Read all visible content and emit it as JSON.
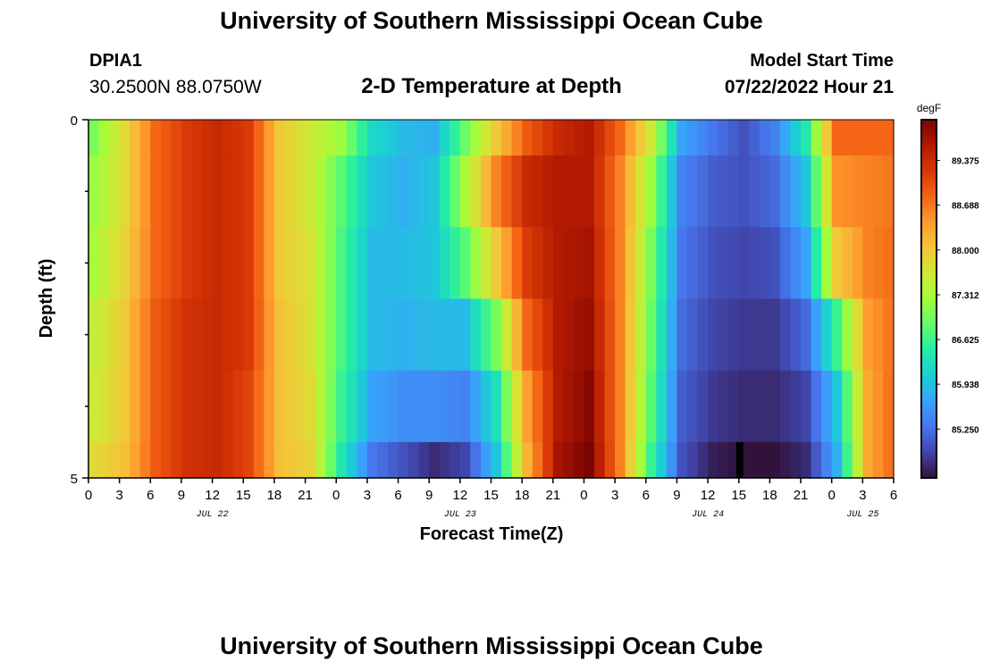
{
  "header": {
    "title": "University of Southern Mississippi Ocean Cube",
    "station_id": "DPIA1",
    "coords": "30.2500N  88.0750W",
    "subtitle": "2-D Temperature at Depth",
    "model_label": "Model Start Time",
    "model_time": "07/22/2022 Hour 21"
  },
  "footer": {
    "title": "University of Southern Mississippi Ocean Cube"
  },
  "chart_data": {
    "type": "heatmap",
    "title": "2-D Temperature at Depth",
    "xlabel": "Forecast Time(Z)",
    "ylabel": "Depth (ft)",
    "ylim": [
      0,
      5
    ],
    "y_tick_labels": [
      "0",
      "5"
    ],
    "x_tick_labels": [
      "0",
      "3",
      "6",
      "9",
      "12",
      "15",
      "18",
      "21",
      "0",
      "3",
      "6",
      "9",
      "12",
      "15",
      "18",
      "21",
      "0",
      "3",
      "6",
      "9",
      "12",
      "15",
      "18",
      "21",
      "0",
      "3",
      "6"
    ],
    "date_labels": [
      {
        "text": "JUL 22",
        "hour": 12
      },
      {
        "text": "JUL 23",
        "hour": 36
      },
      {
        "text": "JUL 24",
        "hour": 60
      },
      {
        "text": "JUL 25",
        "hour": 75
      }
    ],
    "x_range_hours": [
      0,
      78
    ],
    "depth_bins": [
      0,
      0.5,
      1.5,
      2.5,
      3.5,
      4.5
    ],
    "hours": [
      0,
      3,
      6,
      9,
      12,
      15,
      18,
      21,
      24,
      27,
      30,
      33,
      36,
      39,
      42,
      45,
      48,
      51,
      54,
      57,
      60,
      63,
      66,
      69,
      72,
      75,
      78
    ],
    "temperature_by_depth": [
      [
        87.0,
        87.8,
        88.8,
        89.2,
        89.4,
        89.2,
        88.0,
        87.6,
        87.2,
        86.2,
        85.9,
        85.8,
        86.9,
        88.0,
        88.9,
        89.4,
        89.6,
        88.8,
        87.6,
        85.7,
        85.3,
        85.0,
        85.4,
        86.4,
        88.8,
        88.8,
        88.8
      ],
      [
        87.2,
        87.8,
        88.8,
        89.2,
        89.4,
        89.2,
        88.0,
        87.6,
        86.8,
        86.0,
        85.8,
        86.0,
        87.3,
        88.6,
        89.4,
        89.6,
        89.6,
        88.6,
        87.2,
        85.4,
        85.1,
        85.0,
        85.2,
        86.0,
        88.5,
        88.6,
        88.7
      ],
      [
        87.3,
        87.9,
        88.8,
        89.2,
        89.4,
        89.2,
        88.0,
        87.7,
        86.7,
        85.9,
        85.9,
        86.0,
        86.8,
        88.0,
        89.2,
        89.6,
        89.7,
        88.6,
        87.0,
        85.3,
        85.0,
        84.9,
        85.0,
        85.7,
        88.0,
        88.6,
        88.8
      ],
      [
        87.5,
        88.0,
        88.9,
        89.3,
        89.4,
        89.2,
        88.1,
        87.7,
        86.7,
        85.9,
        85.8,
        85.9,
        85.9,
        87.0,
        88.8,
        89.6,
        89.8,
        88.6,
        86.9,
        85.2,
        84.9,
        84.8,
        84.8,
        85.2,
        86.6,
        88.4,
        88.8
      ],
      [
        87.6,
        88.0,
        88.9,
        89.3,
        89.4,
        89.1,
        88.1,
        87.8,
        86.6,
        85.7,
        85.5,
        85.5,
        85.4,
        86.3,
        88.4,
        89.6,
        89.9,
        88.6,
        86.8,
        85.1,
        84.8,
        84.7,
        84.7,
        84.9,
        86.0,
        88.3,
        88.9
      ],
      [
        87.8,
        88.1,
        88.9,
        89.3,
        89.4,
        89.1,
        88.1,
        87.9,
        86.4,
        85.3,
        85.0,
        84.7,
        84.9,
        86.0,
        88.2,
        89.7,
        90.0,
        88.6,
        86.6,
        85.0,
        84.6,
        84.5,
        84.5,
        84.7,
        85.8,
        88.3,
        88.9
      ]
    ],
    "colorbar": {
      "unit": "degF",
      "min": 84.5,
      "max": 90.0,
      "tick_values": [
        85.25,
        85.938,
        86.625,
        87.312,
        88.0,
        88.688,
        89.375
      ],
      "tick_labels": [
        "85.250",
        "85.938",
        "86.625",
        "87.312",
        "88.000",
        "88.688",
        "89.375"
      ],
      "colormap": [
        "#30123b",
        "#4145ab",
        "#4675ed",
        "#39a2fc",
        "#1bcfd4",
        "#24eca6",
        "#61fc6c",
        "#a4fc3b",
        "#d1e834",
        "#f3c63a",
        "#fe9b2d",
        "#f36315",
        "#d93806",
        "#b11901",
        "#7a0403"
      ]
    },
    "missing_cell": {
      "hour": 63,
      "depth_bin": 5,
      "color": "#000000"
    },
    "grid": false,
    "legend": "colorbar-right"
  }
}
